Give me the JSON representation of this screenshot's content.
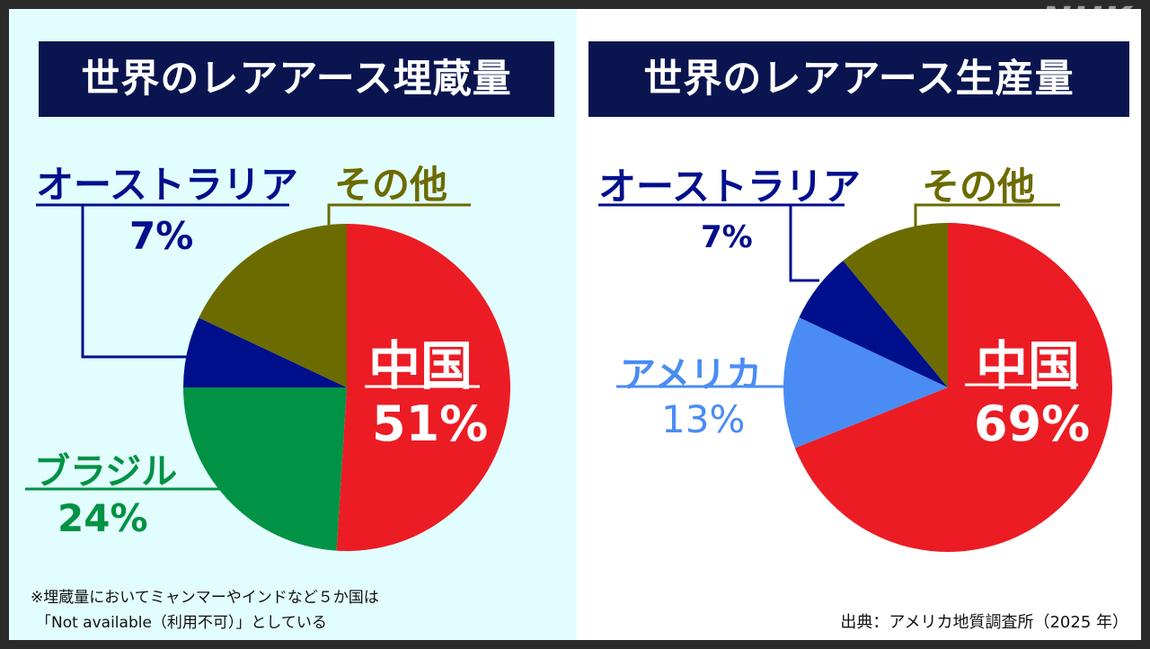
{
  "logo": "NHK",
  "chart_data": [
    {
      "type": "pie",
      "title": "世界のレアアース埋蔵量",
      "slices": [
        {
          "name": "中国",
          "value": 51,
          "label": "51%",
          "color": "#ec1c24"
        },
        {
          "name": "ブラジル",
          "value": 24,
          "label": "24%",
          "color": "#009245"
        },
        {
          "name": "オーストラリア",
          "value": 7,
          "label": "7%",
          "color": "#000f8c"
        },
        {
          "name": "その他",
          "value": 18,
          "label": "",
          "color": "#6b6b00"
        }
      ]
    },
    {
      "type": "pie",
      "title": "世界のレアアース生産量",
      "slices": [
        {
          "name": "中国",
          "value": 69,
          "label": "69%",
          "color": "#ec1c24"
        },
        {
          "name": "アメリカ",
          "value": 13,
          "label": "13%",
          "color": "#4a8cf3"
        },
        {
          "name": "オーストラリア",
          "value": 7,
          "label": "7%",
          "color": "#000f8c"
        },
        {
          "name": "その他",
          "value": 11,
          "label": "",
          "color": "#6b6b00"
        }
      ]
    }
  ],
  "note": {
    "line1": "※埋蔵量においてミャンマーやインドなど５か国は",
    "line2": "「Not available（利用不可）」としている"
  },
  "source": "出典：アメリカ地質調査所（2025 年）"
}
